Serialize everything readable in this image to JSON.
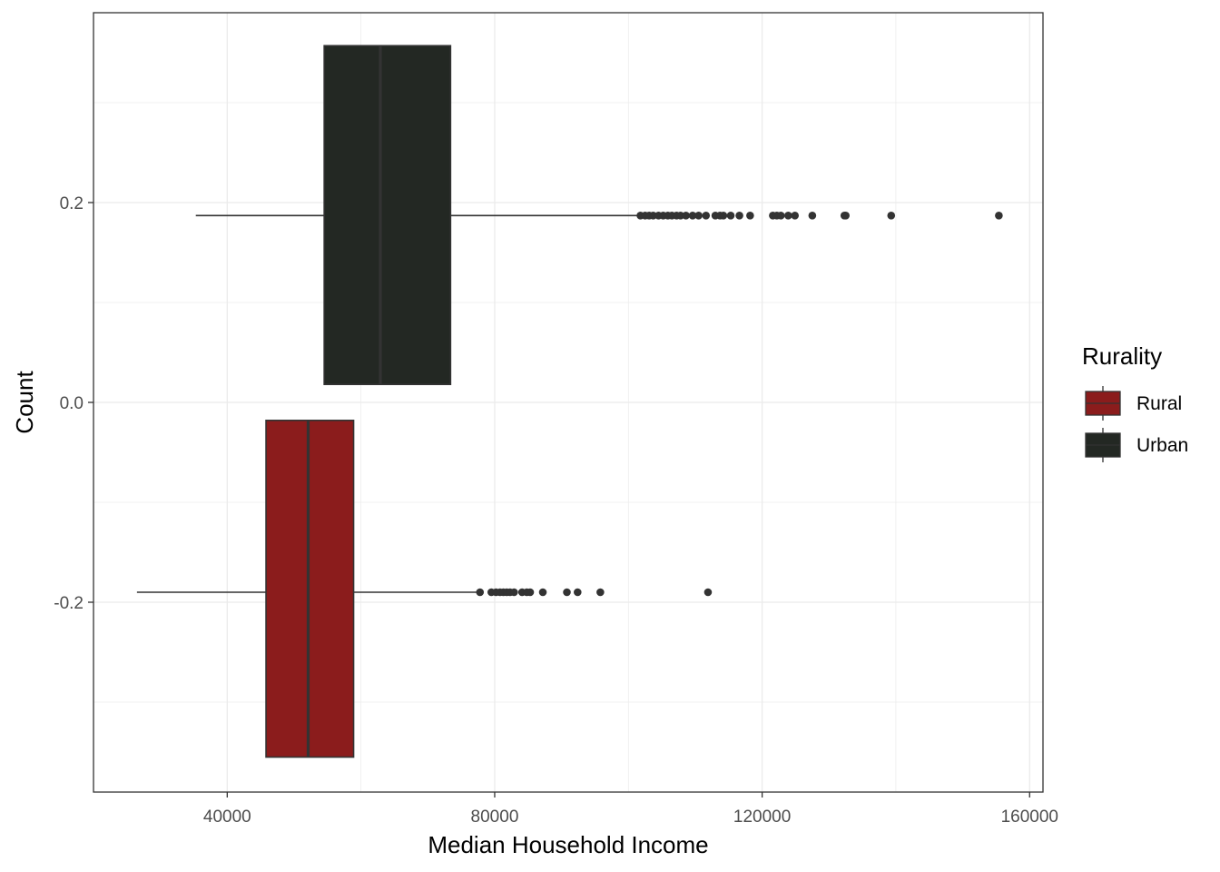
{
  "chart_data": {
    "type": "boxplot",
    "orientation": "horizontal",
    "title": "",
    "xlabel": "Median Household Income",
    "ylabel": "Count",
    "xlim": [
      20000,
      162000
    ],
    "ylim": [
      -0.39,
      0.39
    ],
    "x_ticks": [
      40000,
      80000,
      120000,
      160000
    ],
    "y_ticks": [
      -0.2,
      0.0,
      0.2
    ],
    "y_tick_labels": [
      "-0.2",
      "0.0",
      "0.2"
    ],
    "grid": true,
    "legend": {
      "title": "Rurality",
      "position": "right",
      "entries": [
        {
          "label": "Rural",
          "color": "#8b1c1c"
        },
        {
          "label": "Urban",
          "color": "#232823"
        }
      ]
    },
    "series": [
      {
        "name": "Rural",
        "color": "#8b1c1c",
        "y_center": -0.19,
        "box_ymin": -0.355,
        "box_ymax": -0.018,
        "whisker_min": 26500,
        "q1": 45800,
        "median": 52100,
        "q3": 58900,
        "whisker_max": 77800,
        "outliers": [
          77800,
          79500,
          80200,
          80800,
          81300,
          81800,
          82300,
          82900,
          84100,
          84800,
          85300,
          87200,
          90800,
          92400,
          95800,
          111900
        ]
      },
      {
        "name": "Urban",
        "color": "#232823",
        "y_center": 0.187,
        "box_ymin": 0.018,
        "box_ymax": 0.357,
        "whisker_min": 35300,
        "q1": 54500,
        "median": 62900,
        "q3": 73400,
        "whisker_max": 101800,
        "outliers": [
          101800,
          102500,
          103100,
          103700,
          104500,
          105200,
          105900,
          106500,
          107200,
          107800,
          108600,
          109600,
          110500,
          111600,
          113000,
          113700,
          114200,
          115300,
          116600,
          118200,
          121600,
          122200,
          122800,
          123900,
          124900,
          127500,
          132300,
          132500,
          139300,
          155400
        ]
      }
    ]
  }
}
